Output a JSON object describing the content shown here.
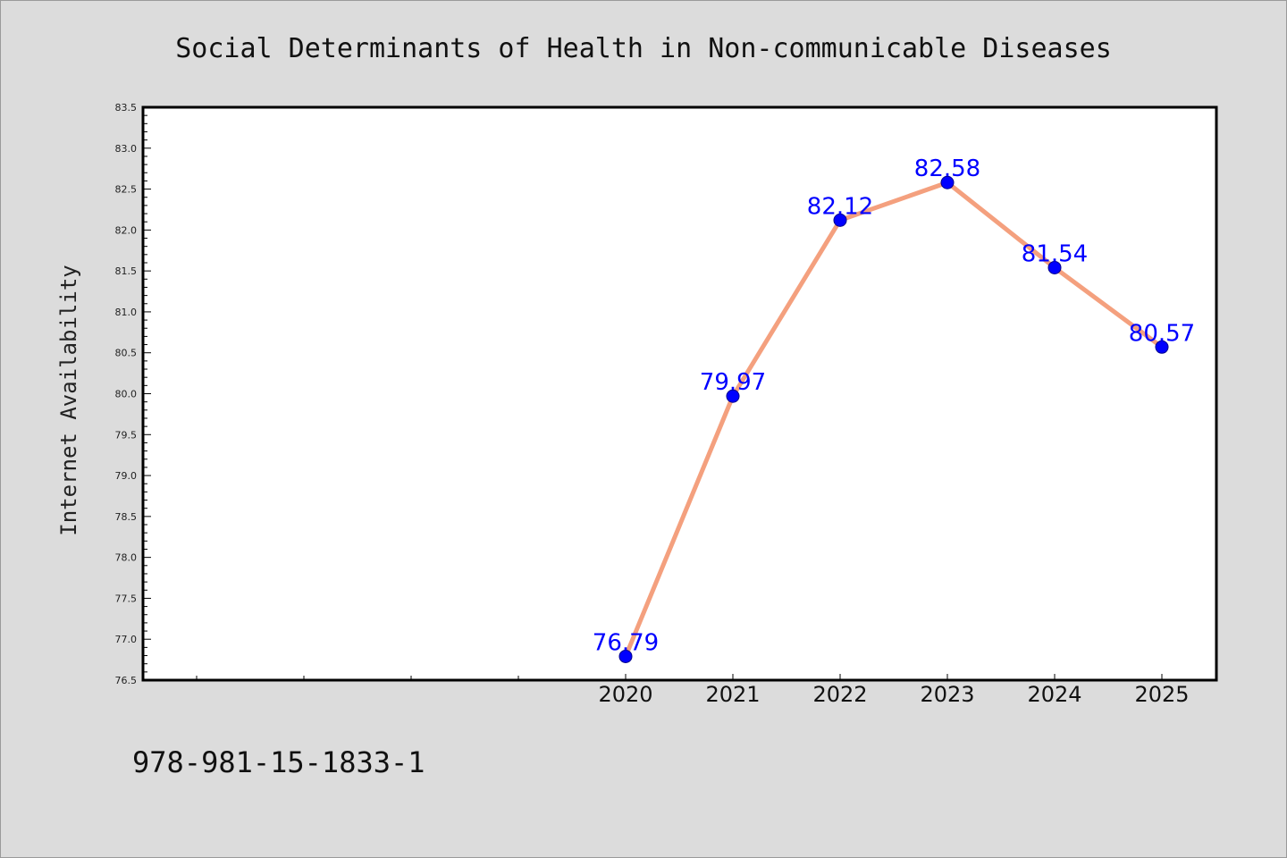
{
  "chart_data": {
    "type": "line",
    "title": "Social Determinants of Health in Non-communicable Diseases",
    "ylabel": "Internet Availability",
    "xlabel": "",
    "x": [
      "2020",
      "2021",
      "2022",
      "2023",
      "2024",
      "2025"
    ],
    "values": [
      76.79,
      79.97,
      82.12,
      82.58,
      81.54,
      80.57
    ],
    "data_labels": [
      "76.79",
      "79.97",
      "82.12",
      "82.58",
      "81.54",
      "80.57"
    ],
    "ylim": [
      76.5,
      83.5
    ],
    "yticks": [
      "76.5",
      "77.0",
      "77.5",
      "78.0",
      "78.5",
      "79.0",
      "79.5",
      "80.0",
      "80.5",
      "81.0",
      "81.5",
      "82.0",
      "82.5",
      "83.0",
      "83.5"
    ],
    "x_slots_before_data": 4,
    "grid": false,
    "legend": "none",
    "colors": {
      "line": "#f4a07e",
      "marker": "#0000ff",
      "marker_edge": "#00008b",
      "data_label": "#0000ff",
      "plot_background": "#ffffff",
      "page_background": "#dcdcdc"
    }
  },
  "footer": {
    "caption": "978-981-15-1833-1"
  }
}
